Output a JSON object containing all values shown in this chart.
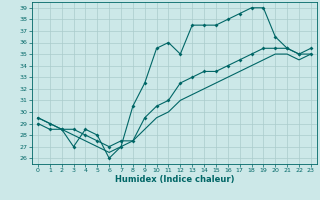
{
  "title": "",
  "xlabel": "Humidex (Indice chaleur)",
  "ylabel": "",
  "xlim": [
    -0.5,
    23.5
  ],
  "ylim": [
    25.5,
    39.5
  ],
  "xticks": [
    0,
    1,
    2,
    3,
    4,
    5,
    6,
    7,
    8,
    9,
    10,
    11,
    12,
    13,
    14,
    15,
    16,
    17,
    18,
    19,
    20,
    21,
    22,
    23
  ],
  "yticks": [
    26,
    27,
    28,
    29,
    30,
    31,
    32,
    33,
    34,
    35,
    36,
    37,
    38,
    39
  ],
  "bg_color": "#cce8e8",
  "grid_color": "#aacccc",
  "line_color": "#006666",
  "line1_x": [
    0,
    1,
    2,
    3,
    4,
    5,
    6,
    7,
    8,
    9,
    10,
    11,
    12,
    13,
    14,
    15,
    16,
    17,
    18,
    19,
    20,
    21,
    22,
    23
  ],
  "line1_y": [
    29.5,
    29.0,
    28.5,
    27.0,
    28.5,
    28.0,
    26.0,
    27.0,
    30.5,
    32.5,
    35.5,
    36.0,
    35.0,
    37.5,
    37.5,
    37.5,
    38.0,
    38.5,
    39.0,
    39.0,
    36.5,
    35.5,
    35.0,
    35.5
  ],
  "line2_x": [
    0,
    1,
    2,
    3,
    4,
    5,
    6,
    7,
    8,
    9,
    10,
    11,
    12,
    13,
    14,
    15,
    16,
    17,
    18,
    19,
    20,
    21,
    22,
    23
  ],
  "line2_y": [
    29.0,
    28.5,
    28.5,
    28.5,
    28.0,
    27.5,
    27.0,
    27.5,
    27.5,
    29.5,
    30.5,
    31.0,
    32.5,
    33.0,
    33.5,
    33.5,
    34.0,
    34.5,
    35.0,
    35.5,
    35.5,
    35.5,
    35.0,
    35.0
  ],
  "line3_x": [
    0,
    1,
    2,
    3,
    4,
    5,
    6,
    7,
    8,
    9,
    10,
    11,
    12,
    13,
    14,
    15,
    16,
    17,
    18,
    19,
    20,
    21,
    22,
    23
  ],
  "line3_y": [
    29.5,
    29.0,
    28.5,
    28.0,
    27.5,
    27.0,
    26.5,
    27.0,
    27.5,
    28.5,
    29.5,
    30.0,
    31.0,
    31.5,
    32.0,
    32.5,
    33.0,
    33.5,
    34.0,
    34.5,
    35.0,
    35.0,
    34.5,
    35.0
  ]
}
